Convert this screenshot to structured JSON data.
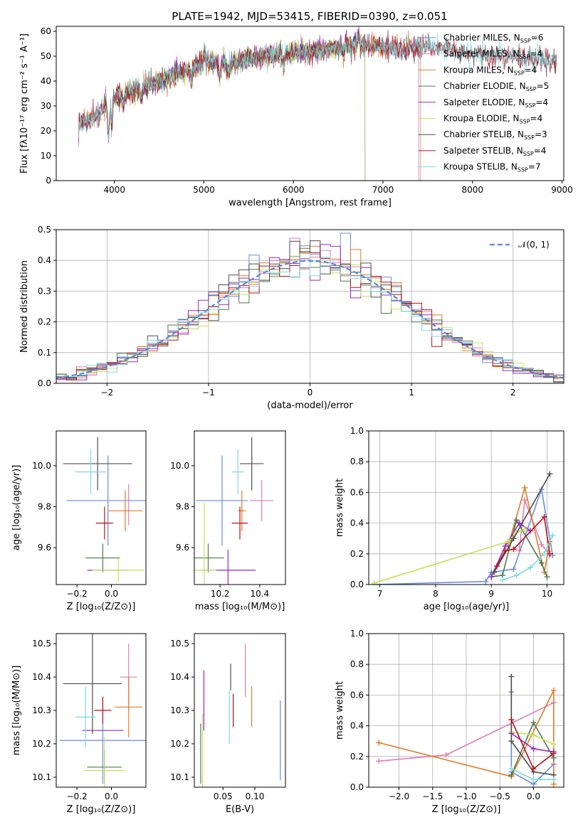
{
  "colors": {
    "chabrier_miles": "#6a8cdc",
    "salpeter_miles": "#e07fb3",
    "kroupa_miles": "#e07b26",
    "chabrier_elodie": "#4f7a4f",
    "salpeter_elodie": "#9a27c2",
    "kroupa_elodie": "#c8e05a",
    "chabrier_stelib": "#4d4d4d",
    "salpeter_stelib": "#b5121b",
    "kroupa_stelib": "#7fd9e3",
    "normal_curve": "#5b87d6"
  },
  "chart_data": [
    {
      "type": "line",
      "title": "PLATE=1942, MJD=53415, FIBERID=0390, z=0.051",
      "xlabel": "wavelength [Angstrom, rest frame]",
      "ylabel": "Flux [fλ10⁻¹⁷ erg cm⁻² s⁻¹ A⁻¹]",
      "xlim": [
        3350,
        9020
      ],
      "ylim": [
        0,
        62
      ],
      "xticks": [
        4000,
        5000,
        6000,
        7000,
        8000,
        9000
      ],
      "yticks": [
        0,
        10,
        20,
        30,
        40,
        50,
        60
      ],
      "legend_position": "top-right",
      "series": [
        {
          "name": "Chabrier MILES, N",
          "sub": "SSP",
          "suffix": "=6",
          "color_key": "chabrier_miles",
          "x_range": [
            3600,
            7400
          ]
        },
        {
          "name": "Salpeter MILES, N",
          "sub": "SSP",
          "suffix": "=4",
          "color_key": "salpeter_miles",
          "x_range": [
            3600,
            7400
          ]
        },
        {
          "name": "Kroupa MILES, N",
          "sub": "SSP",
          "suffix": "=4",
          "color_key": "kroupa_miles",
          "x_range": [
            3600,
            7420
          ]
        },
        {
          "name": "Chabrier ELODIE, N",
          "sub": "SSP",
          "suffix": "=5",
          "color_key": "chabrier_elodie",
          "x_range": [
            3900,
            6800
          ]
        },
        {
          "name": "Salpeter ELODIE, N",
          "sub": "SSP",
          "suffix": "=4",
          "color_key": "salpeter_elodie",
          "x_range": [
            3900,
            6800
          ]
        },
        {
          "name": "Kroupa ELODIE, N",
          "sub": "SSP",
          "suffix": "=4",
          "color_key": "kroupa_elodie",
          "x_range": [
            3900,
            6800
          ]
        },
        {
          "name": "Chabrier STELIB, N",
          "sub": "SSP",
          "suffix": "=3",
          "color_key": "chabrier_stelib",
          "x_range": [
            3600,
            8950
          ]
        },
        {
          "name": "Salpeter STELIB, N",
          "sub": "SSP",
          "suffix": "=4",
          "color_key": "salpeter_stelib",
          "x_range": [
            3600,
            8950
          ]
        },
        {
          "name": "Kroupa STELIB, N",
          "sub": "SSP",
          "suffix": "=7",
          "color_key": "kroupa_stelib",
          "x_range": [
            3600,
            8950
          ]
        }
      ],
      "continuum": {
        "x": [
          3600,
          3700,
          3800,
          3950,
          4100,
          4300,
          4500,
          4800,
          5000,
          5300,
          5600,
          5900,
          6200,
          6500,
          6700,
          6900,
          7200,
          7500,
          7800,
          8100,
          8400,
          8700,
          8950
        ],
        "y": [
          23,
          24,
          26,
          32,
          35,
          37,
          40,
          44,
          48,
          47,
          50,
          51,
          52,
          53,
          55,
          54,
          53,
          54,
          52,
          51,
          50,
          49,
          48
        ]
      }
    },
    {
      "type": "bar",
      "xlabel": "(data-model)/error",
      "ylabel": "Normed distribution",
      "xlim": [
        -2.5,
        2.5
      ],
      "ylim": [
        0,
        0.5
      ],
      "xticks": [
        -2,
        -1,
        0,
        1,
        2
      ],
      "yticks": [
        0.0,
        0.1,
        0.2,
        0.3,
        0.4,
        0.5
      ],
      "grid": true,
      "legend_position": "top-right",
      "legend": "𝒩(0, 1)",
      "bin_width": 0.1,
      "note": "histograms of residuals for each of the 9 model fits, approximately standard normal"
    },
    {
      "type": "scatter",
      "xlabel": "Z [log₁₀(Z/Z⊙)]",
      "ylabel": "age  [log₁₀(age/yr)]",
      "xlim": [
        -0.32,
        0.2
      ],
      "ylim": [
        9.42,
        10.17
      ],
      "xticks": [
        -0.2,
        0.0
      ],
      "yticks": [
        9.6,
        9.8,
        10.0
      ],
      "points": [
        {
          "c": "chabrier_miles",
          "x": -0.02,
          "xe": 0.24,
          "y": 9.83,
          "ye": 0.22
        },
        {
          "c": "salpeter_miles",
          "x": 0.1,
          "xe": 0.0,
          "y": 9.81,
          "ye": 0.1
        },
        {
          "c": "kroupa_miles",
          "x": 0.08,
          "xe": 0.1,
          "y": 9.78,
          "ye": 0.1
        },
        {
          "c": "chabrier_elodie",
          "x": -0.05,
          "xe": 0.1,
          "y": 9.55,
          "ye": 0.07
        },
        {
          "c": "salpeter_elodie",
          "x": -0.02,
          "xe": 0.12,
          "y": 9.49,
          "ye": 0.0
        },
        {
          "c": "kroupa_elodie",
          "x": 0.04,
          "xe": 0.15,
          "y": 9.49,
          "ye": 0.06
        },
        {
          "c": "chabrier_stelib",
          "x": -0.08,
          "xe": 0.2,
          "y": 10.01,
          "ye": 0.13
        },
        {
          "c": "salpeter_stelib",
          "x": -0.04,
          "xe": 0.05,
          "y": 9.72,
          "ye": 0.08
        },
        {
          "c": "kroupa_stelib",
          "x": -0.12,
          "xe": 0.09,
          "y": 9.97,
          "ye": 0.11
        }
      ]
    },
    {
      "type": "scatter",
      "xlabel": "mass [log₁₀(M/M⊙)]",
      "xlim": [
        10.07,
        10.53
      ],
      "ylim": [
        9.42,
        10.17
      ],
      "xticks": [
        10.2,
        10.4
      ],
      "yticks": [
        9.6,
        9.8,
        10.0
      ],
      "points": [
        {
          "c": "chabrier_miles",
          "x": 10.21,
          "xe": 0.13,
          "y": 9.83,
          "ye": 0.22
        },
        {
          "c": "salpeter_miles",
          "x": 10.41,
          "xe": 0.06,
          "y": 9.83,
          "ye": 0.1
        },
        {
          "c": "kroupa_miles",
          "x": 10.31,
          "xe": 0.02,
          "y": 9.78,
          "ye": 0.1
        },
        {
          "c": "chabrier_elodie",
          "x": 10.14,
          "xe": 0.08,
          "y": 9.55,
          "ye": 0.07
        },
        {
          "c": "salpeter_elodie",
          "x": 10.24,
          "xe": 0.14,
          "y": 9.49,
          "ye": 0.1
        },
        {
          "c": "kroupa_elodie",
          "x": 10.12,
          "xe": 0.06,
          "y": 9.49,
          "ye": 0.33
        },
        {
          "c": "chabrier_stelib",
          "x": 10.36,
          "xe": 0.06,
          "y": 10.01,
          "ye": 0.13
        },
        {
          "c": "salpeter_stelib",
          "x": 10.3,
          "xe": 0.04,
          "y": 9.72,
          "ye": 0.08
        },
        {
          "c": "kroupa_stelib",
          "x": 10.29,
          "xe": 0.03,
          "y": 9.97,
          "ye": 0.11
        }
      ]
    },
    {
      "type": "line",
      "xlabel": "age  [log₁₀(age/yr)]",
      "ylabel": "mass weight",
      "xlim": [
        6.8,
        10.3
      ],
      "ylim": [
        0,
        1.0
      ],
      "xticks": [
        7,
        8,
        9,
        10
      ],
      "yticks": [
        0.0,
        0.2,
        0.4,
        0.6,
        0.8,
        1.0
      ],
      "grid": true,
      "series": [
        {
          "c": "chabrier_miles",
          "x": [
            6.9,
            8.9,
            9.0,
            9.4,
            9.9,
            10.1
          ],
          "y": [
            0.0,
            0.02,
            0.08,
            0.1,
            0.62,
            0.19
          ]
        },
        {
          "c": "salpeter_miles",
          "x": [
            9.5,
            9.6,
            9.9,
            10.05
          ],
          "y": [
            0.22,
            0.55,
            0.26,
            0.19
          ]
        },
        {
          "c": "kroupa_miles",
          "x": [
            9.3,
            9.6,
            9.95,
            10.05
          ],
          "y": [
            0.25,
            0.63,
            0.08,
            0.28
          ]
        },
        {
          "c": "chabrier_elodie",
          "x": [
            9.0,
            9.2,
            9.45,
            9.9,
            10.0
          ],
          "y": [
            0.05,
            0.06,
            0.42,
            0.14,
            0.05
          ]
        },
        {
          "c": "salpeter_elodie",
          "x": [
            9.0,
            9.25,
            9.5,
            9.7
          ],
          "y": [
            0.05,
            0.25,
            0.4,
            0.35
          ]
        },
        {
          "c": "kroupa_elodie",
          "x": [
            6.9,
            9.3,
            9.45,
            9.6
          ],
          "y": [
            0.01,
            0.28,
            0.34,
            0.36
          ]
        },
        {
          "c": "chabrier_stelib",
          "x": [
            9.05,
            9.4,
            10.05
          ],
          "y": [
            0.08,
            0.3,
            0.72
          ]
        },
        {
          "c": "salpeter_stelib",
          "x": [
            9.1,
            9.25,
            9.4,
            9.95,
            10.05
          ],
          "y": [
            0.12,
            0.22,
            0.23,
            0.44,
            0.2
          ]
        },
        {
          "c": "kroupa_stelib",
          "x": [
            9.2,
            9.45,
            9.7,
            9.95,
            10.1
          ],
          "y": [
            0.03,
            0.06,
            0.11,
            0.2,
            0.32
          ]
        }
      ]
    },
    {
      "type": "scatter",
      "xlabel": "Z [log₁₀(Z/Z⊙)]",
      "ylabel": "mass [log₁₀(M/M⊙)]",
      "xlim": [
        -0.32,
        0.2
      ],
      "ylim": [
        10.07,
        10.53
      ],
      "xticks": [
        -0.2,
        0.0
      ],
      "yticks": [
        10.1,
        10.2,
        10.3,
        10.4,
        10.5
      ],
      "points": [
        {
          "c": "chabrier_miles",
          "x": -0.05,
          "xe": 0.25,
          "y": 10.21,
          "ye": 0.13
        },
        {
          "c": "salpeter_miles",
          "x": 0.1,
          "xe": 0.05,
          "y": 10.4,
          "ye": 0.1
        },
        {
          "c": "kroupa_miles",
          "x": 0.1,
          "xe": 0.08,
          "y": 10.31,
          "ye": 0.09
        },
        {
          "c": "chabrier_elodie",
          "x": -0.04,
          "xe": 0.1,
          "y": 10.13,
          "ye": 0.05
        },
        {
          "c": "salpeter_elodie",
          "x": -0.05,
          "xe": 0.12,
          "y": 10.24,
          "ye": 0.0
        },
        {
          "c": "kroupa_elodie",
          "x": -0.04,
          "xe": 0.12,
          "y": 10.12,
          "ye": 0.1
        },
        {
          "c": "chabrier_stelib",
          "x": -0.11,
          "xe": 0.17,
          "y": 10.38,
          "ye": 0.15
        },
        {
          "c": "salpeter_stelib",
          "x": -0.05,
          "xe": 0.05,
          "y": 10.3,
          "ye": 0.04
        },
        {
          "c": "kroupa_stelib",
          "x": -0.15,
          "xe": 0.06,
          "y": 10.28,
          "ye": 0.09
        }
      ]
    },
    {
      "type": "scatter",
      "xlabel": "E(B-V)",
      "xlim": [
        0.005,
        0.148
      ],
      "ylim": [
        10.07,
        10.53
      ],
      "xticks": [
        0.05,
        0.1
      ],
      "yticks": [
        10.1,
        10.2,
        10.3,
        10.4,
        10.5
      ],
      "points": [
        {
          "c": "chabrier_miles",
          "x": 0.14,
          "xe": 0.0,
          "y": 10.21,
          "ye": 0.12
        },
        {
          "c": "salpeter_miles",
          "x": 0.085,
          "xe": 0.0,
          "y": 10.42,
          "ye": 0.08
        },
        {
          "c": "kroupa_miles",
          "x": 0.095,
          "xe": 0.0,
          "y": 10.31,
          "ye": 0.06
        },
        {
          "c": "chabrier_elodie",
          "x": 0.015,
          "xe": 0.0,
          "y": 10.17,
          "ye": 0.09
        },
        {
          "c": "salpeter_elodie",
          "x": 0.02,
          "xe": 0.0,
          "y": 10.33,
          "ye": 0.09
        },
        {
          "c": "kroupa_elodie",
          "x": 0.018,
          "xe": 0.0,
          "y": 10.18,
          "ye": 0.11
        },
        {
          "c": "chabrier_stelib",
          "x": 0.062,
          "xe": 0.0,
          "y": 10.4,
          "ye": 0.04
        },
        {
          "c": "salpeter_stelib",
          "x": 0.066,
          "xe": 0.0,
          "y": 10.3,
          "ye": 0.05
        },
        {
          "c": "kroupa_stelib",
          "x": 0.06,
          "xe": 0.0,
          "y": 10.28,
          "ye": 0.08
        }
      ]
    },
    {
      "type": "line",
      "xlabel": "Z [log₁₀(Z/Z⊙)]",
      "ylabel": "mass weight",
      "xlim": [
        -2.45,
        0.45
      ],
      "ylim": [
        0,
        1.0
      ],
      "xticks": [
        -2.0,
        -1.5,
        -1.0,
        -0.5,
        0.0
      ],
      "yticks": [
        0.0,
        0.2,
        0.4,
        0.6,
        0.8,
        1.0
      ],
      "grid": true,
      "series": [
        {
          "c": "chabrier_miles",
          "x": [
            -0.33,
            -0.33,
            0.0,
            0.3
          ],
          "y": [
            0.62,
            0.1,
            0.02,
            0.15
          ]
        },
        {
          "c": "salpeter_miles",
          "x": [
            -2.3,
            -1.3,
            0.3
          ],
          "y": [
            0.17,
            0.21,
            0.55
          ]
        },
        {
          "c": "kroupa_miles",
          "x": [
            -2.3,
            -0.33,
            0.3,
            0.3
          ],
          "y": [
            0.29,
            0.07,
            0.63,
            0.02
          ]
        },
        {
          "c": "chabrier_elodie",
          "x": [
            -0.33,
            0.0,
            0.3
          ],
          "y": [
            0.08,
            0.42,
            0.19
          ]
        },
        {
          "c": "salpeter_elodie",
          "x": [
            -0.33,
            0.0,
            0.3
          ],
          "y": [
            0.35,
            0.25,
            0.23
          ]
        },
        {
          "c": "kroupa_elodie",
          "x": [
            -0.33,
            0.0,
            0.3
          ],
          "y": [
            0.36,
            0.34,
            0.28
          ]
        },
        {
          "c": "chabrier_stelib",
          "x": [
            -0.33,
            -0.33,
            0.0,
            0.3
          ],
          "y": [
            0.72,
            0.3,
            0.1,
            0.08
          ]
        },
        {
          "c": "salpeter_stelib",
          "x": [
            -0.33,
            0.0,
            0.3
          ],
          "y": [
            0.44,
            0.12,
            0.22
          ]
        },
        {
          "c": "kroupa_stelib",
          "x": [
            -0.33,
            0.0,
            0.3
          ],
          "y": [
            0.12,
            0.05,
            0.05
          ]
        }
      ]
    }
  ]
}
